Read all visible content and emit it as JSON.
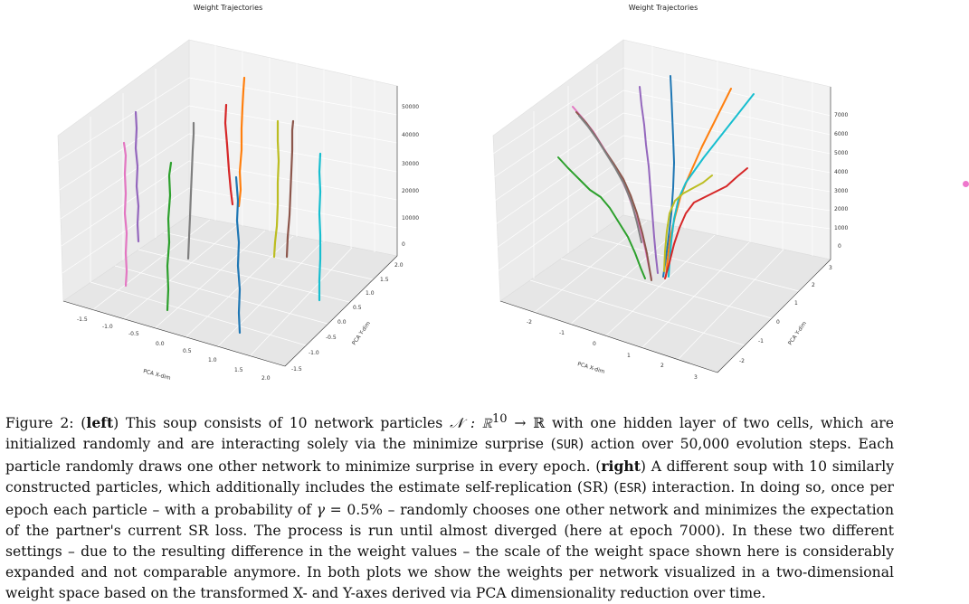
{
  "figures": {
    "left": {
      "title": "Weight Trajectories",
      "x_label": "PCA X-dim",
      "y_label": "PCA Y-dim",
      "x_ticks": [
        "-1.5",
        "-1.0",
        "-0.5",
        "0.0",
        "0.5",
        "1.0",
        "1.5",
        "2.0"
      ],
      "y_ticks": [
        "-1.5",
        "-1.0",
        "-0.5",
        "0.0",
        "0.5",
        "1.0",
        "1.5",
        "2.0"
      ],
      "z_ticks": [
        "0",
        "10000",
        "20000",
        "30000",
        "40000",
        "50000"
      ]
    },
    "right": {
      "title": "Weight Trajectories",
      "x_label": "PCA X-dim",
      "y_label": "PCA Y-dim",
      "x_ticks": [
        "-2",
        "-1",
        "0",
        "1",
        "2",
        "3"
      ],
      "y_ticks": [
        "-2",
        "-1",
        "0",
        "1",
        "2",
        "3"
      ],
      "z_ticks": [
        "0",
        "1000",
        "2000",
        "3000",
        "4000",
        "5000",
        "6000",
        "7000"
      ]
    }
  },
  "caption": {
    "label": "Figure 2:",
    "left_tag": "left",
    "part1": " This soup consists of 10 network particles ",
    "math_map": "𝒩 : ℝ",
    "math_sup": "10",
    "math_map_end": " → ℝ",
    "part2": " with one hidden layer of two cells, which are initialized randomly and are interacting solely via the minimize surprise (",
    "sur": "SUR",
    "part3": ") action over 50,000 evolution steps. Each particle randomly draws one other network to minimize surprise in every epoch. (",
    "right_tag": "right",
    "part4": ") A different soup with 10 similarly constructed particles, which additionally includes the estimate self-replication (SR) (",
    "esr": "ESR",
    "part5": ") interaction. In doing so, once per epoch each particle – with a probability of ",
    "gamma": "γ",
    "gamma_val": " = 0.5%",
    "part6": " – randomly chooses one other network and minimizes the expectation of the partner's current SR loss. The process is run until almost diverged (here at epoch 7000). In these two different settings – due to the resulting difference in the weight values – the scale of the weight space shown here is considerably expanded and not comparable anymore. In both plots we show the weights per network visualized in a two-dimensional weight space based on the transformed X- and Y-axes derived via PCA dimensionality reduction over time."
  },
  "colors": {
    "series": [
      "#1f77b4",
      "#ff7f0e",
      "#2ca02c",
      "#d62728",
      "#9467bd",
      "#8c564b",
      "#e377c2",
      "#7f7f7f",
      "#bcbd22",
      "#17becf"
    ]
  }
}
